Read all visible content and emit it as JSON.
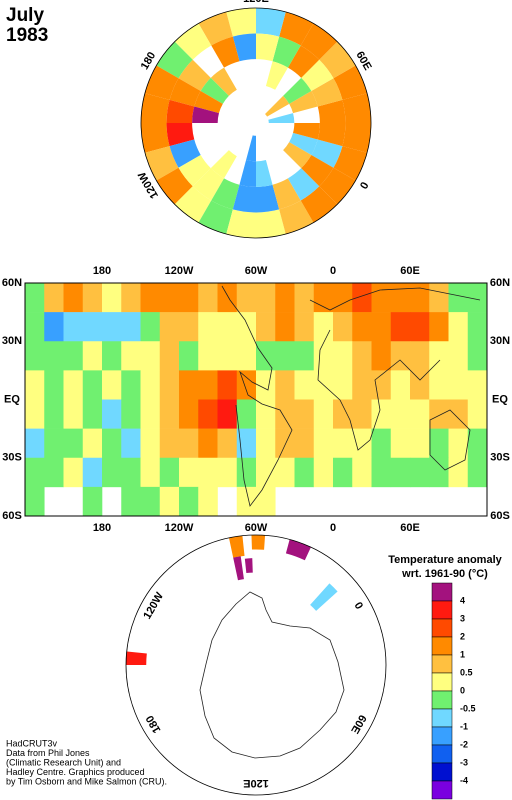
{
  "title": [
    "July",
    "1983"
  ],
  "credits": [
    "HadCRUT3v",
    "Data from Phil Jones",
    "(Climatic Research Unit) and",
    "Hadley Centre.  Graphics produced",
    "by Tim Osborn and Mike Salmon (CRU)."
  ],
  "legend": {
    "title": "Temperature anomaly",
    "subtitle": "wrt. 1961-90  (°C)",
    "boundaries": [
      4,
      3,
      2,
      1,
      0.5,
      0,
      -0.5,
      -1,
      -2,
      -3,
      -4
    ],
    "colors": [
      "#a3127e",
      "#ff1a10",
      "#ff4a00",
      "#ff8a00",
      "#ffc040",
      "#ffff80",
      "#70f070",
      "#70d8ff",
      "#38a0ff",
      "#1060f0",
      "#0010d0",
      "#7a00e0"
    ]
  },
  "north_map": {
    "boundary_lat": 45,
    "lon_ticks": [
      {
        "value": 120,
        "label": "120E"
      },
      {
        "value": 60,
        "label": "60E"
      },
      0,
      180,
      {
        "value": -120,
        "label": "120W"
      }
    ],
    "ring_lats": [
      45,
      55,
      65,
      75,
      85
    ],
    "lon_step": 15,
    "rings": [
      [
        1.5,
        1,
        1.5,
        1,
        0.7,
        1.5,
        1,
        -0.7,
        0.3,
        0.7,
        0.3,
        -0.3,
        1,
        1.5,
        1,
        0.7,
        1,
        0.3,
        -0.3,
        0.3,
        0.3,
        0.7,
        1,
        1
      ],
      [
        -0.7,
        1,
        1.5,
        0.7,
        0.3,
        1,
        -0.5,
        0.3,
        -1.5,
        1,
        null,
        0.7,
        1.5,
        2,
        3,
        -2,
        0.3,
        0.3,
        -0.3,
        -1.5,
        -1.5,
        0.7,
        -0.7,
        1
      ],
      [
        -0.7,
        1,
        null,
        0.7,
        -0.3,
        null,
        0.3,
        null,
        null,
        null,
        0.5,
        -0.3,
        1,
        4.5,
        null,
        null,
        null,
        0.3,
        null,
        -1.5,
        -1,
        null,
        null,
        0.7
      ],
      [
        null,
        null,
        -0.7,
        null,
        0.7,
        null,
        null,
        null,
        null,
        null,
        null,
        null,
        null,
        null,
        null,
        null,
        null,
        null,
        null,
        -1.5,
        null,
        null,
        null,
        null
      ]
    ]
  },
  "world_map": {
    "xlim": [
      120,
      480
    ],
    "ylim": [
      -60,
      60
    ],
    "xticks": [
      180,
      {
        "value": 240,
        "label": "120W"
      },
      {
        "value": 300,
        "label": "60W"
      },
      {
        "value": 360,
        "label": "0"
      },
      {
        "value": 420,
        "label": "60E"
      }
    ],
    "yticks": [
      {
        "value": 60,
        "label": "60N"
      },
      {
        "value": 30,
        "label": "30N"
      },
      {
        "value": 0,
        "label": "EQ"
      },
      {
        "value": -30,
        "label": "30S"
      },
      {
        "value": -60,
        "label": "60S"
      }
    ],
    "cells": [
      [
        -0.5,
        0.5,
        1,
        0.5,
        0,
        0.5,
        1,
        1,
        1,
        0.7,
        1.5,
        0.5,
        0.5,
        1,
        0.5,
        1,
        1.5,
        2,
        1,
        1.5,
        1.5,
        0.5,
        -0.5,
        -0.3
      ],
      [
        -0.5,
        -1.5,
        -1,
        -1,
        -1,
        -1,
        -0.5,
        0.5,
        0.7,
        0.3,
        0.2,
        0.2,
        0.5,
        1,
        0.5,
        0.3,
        0.7,
        1,
        1.5,
        2,
        2,
        1,
        0.3,
        -0.3
      ],
      [
        -0.3,
        -0.5,
        -0.3,
        0.2,
        -0.3,
        0.3,
        0.2,
        0.5,
        -0.3,
        0.3,
        0.3,
        0.2,
        -0.3,
        -0.3,
        -0.3,
        0.3,
        0.3,
        0.7,
        1,
        0.7,
        0.7,
        0.3,
        0.2,
        -0.3
      ],
      [
        0.3,
        -0.3,
        0.2,
        -0.3,
        0.3,
        -0.3,
        0.3,
        0.5,
        1,
        1.5,
        2,
        1,
        0.3,
        0.5,
        0.3,
        0.3,
        0.2,
        0.7,
        0.5,
        0.3,
        0.7,
        0.2,
        0.3,
        0.3
      ],
      [
        0.3,
        -0.3,
        0.2,
        -0.3,
        -0.7,
        -0.3,
        0.3,
        0.7,
        1.5,
        2,
        3,
        -0.5,
        0.3,
        0.5,
        0.7,
        0.3,
        0.7,
        0.5,
        0.3,
        0.2,
        0.3,
        0.7,
        0.5,
        0.3
      ],
      [
        -0.7,
        -0.3,
        -0.3,
        0.3,
        -0.3,
        -0.7,
        0.3,
        0.7,
        0.7,
        1,
        0.5,
        -1,
        0.3,
        0.5,
        0.7,
        0.3,
        0.3,
        0.2,
        -0.3,
        0.3,
        0.2,
        -0.3,
        0.3,
        -0.3
      ],
      [
        -0.3,
        -0.3,
        0.3,
        -0.7,
        -0.3,
        -0.3,
        0.3,
        -0.3,
        0.3,
        0.3,
        0.3,
        -0.5,
        0.3,
        0.3,
        -0.3,
        0.3,
        -0.3,
        0.3,
        -0.3,
        -0.3,
        -0.3,
        -0.3,
        0.2,
        -0.3
      ],
      [
        -0.3,
        null,
        null,
        -0.3,
        null,
        -0.3,
        -0.3,
        0.3,
        -0.3,
        0.3,
        null,
        0.3,
        0.3,
        null,
        null,
        null,
        null,
        null,
        null,
        null,
        null,
        null,
        null,
        null
      ]
    ]
  },
  "south_map": {
    "boundary_lat": -45,
    "lon_ticks": [
      {
        "value": -120,
        "label": "120W"
      },
      0,
      {
        "value": 60,
        "label": "60E"
      },
      180,
      {
        "value": 120,
        "label": "120E"
      }
    ],
    "cells": [
      {
        "lon": [
          -45,
          -35
        ],
        "lat": [
          -45,
          -50
        ],
        "value": 4.5
      },
      {
        "lon": [
          -72,
          -66
        ],
        "lat": [
          -45,
          -52
        ],
        "value": 1.5
      },
      {
        "lon": [
          -62,
          -56
        ],
        "lat": [
          -45,
          -50
        ],
        "value": 1.5
      },
      {
        "lon": [
          -72,
          -68
        ],
        "lat": [
          -52,
          -60
        ],
        "value": 4.5
      },
      {
        "lon": [
          -66,
          -62
        ],
        "lat": [
          -53,
          -58
        ],
        "value": 4.5
      },
      {
        "lon": [
          -18,
          -12
        ],
        "lat": [
          -52,
          -62
        ],
        "value": -0.7
      },
      {
        "lon": [
          -150,
          -144
        ],
        "lat": [
          -45,
          -52
        ],
        "value": 3.5
      }
    ]
  }
}
